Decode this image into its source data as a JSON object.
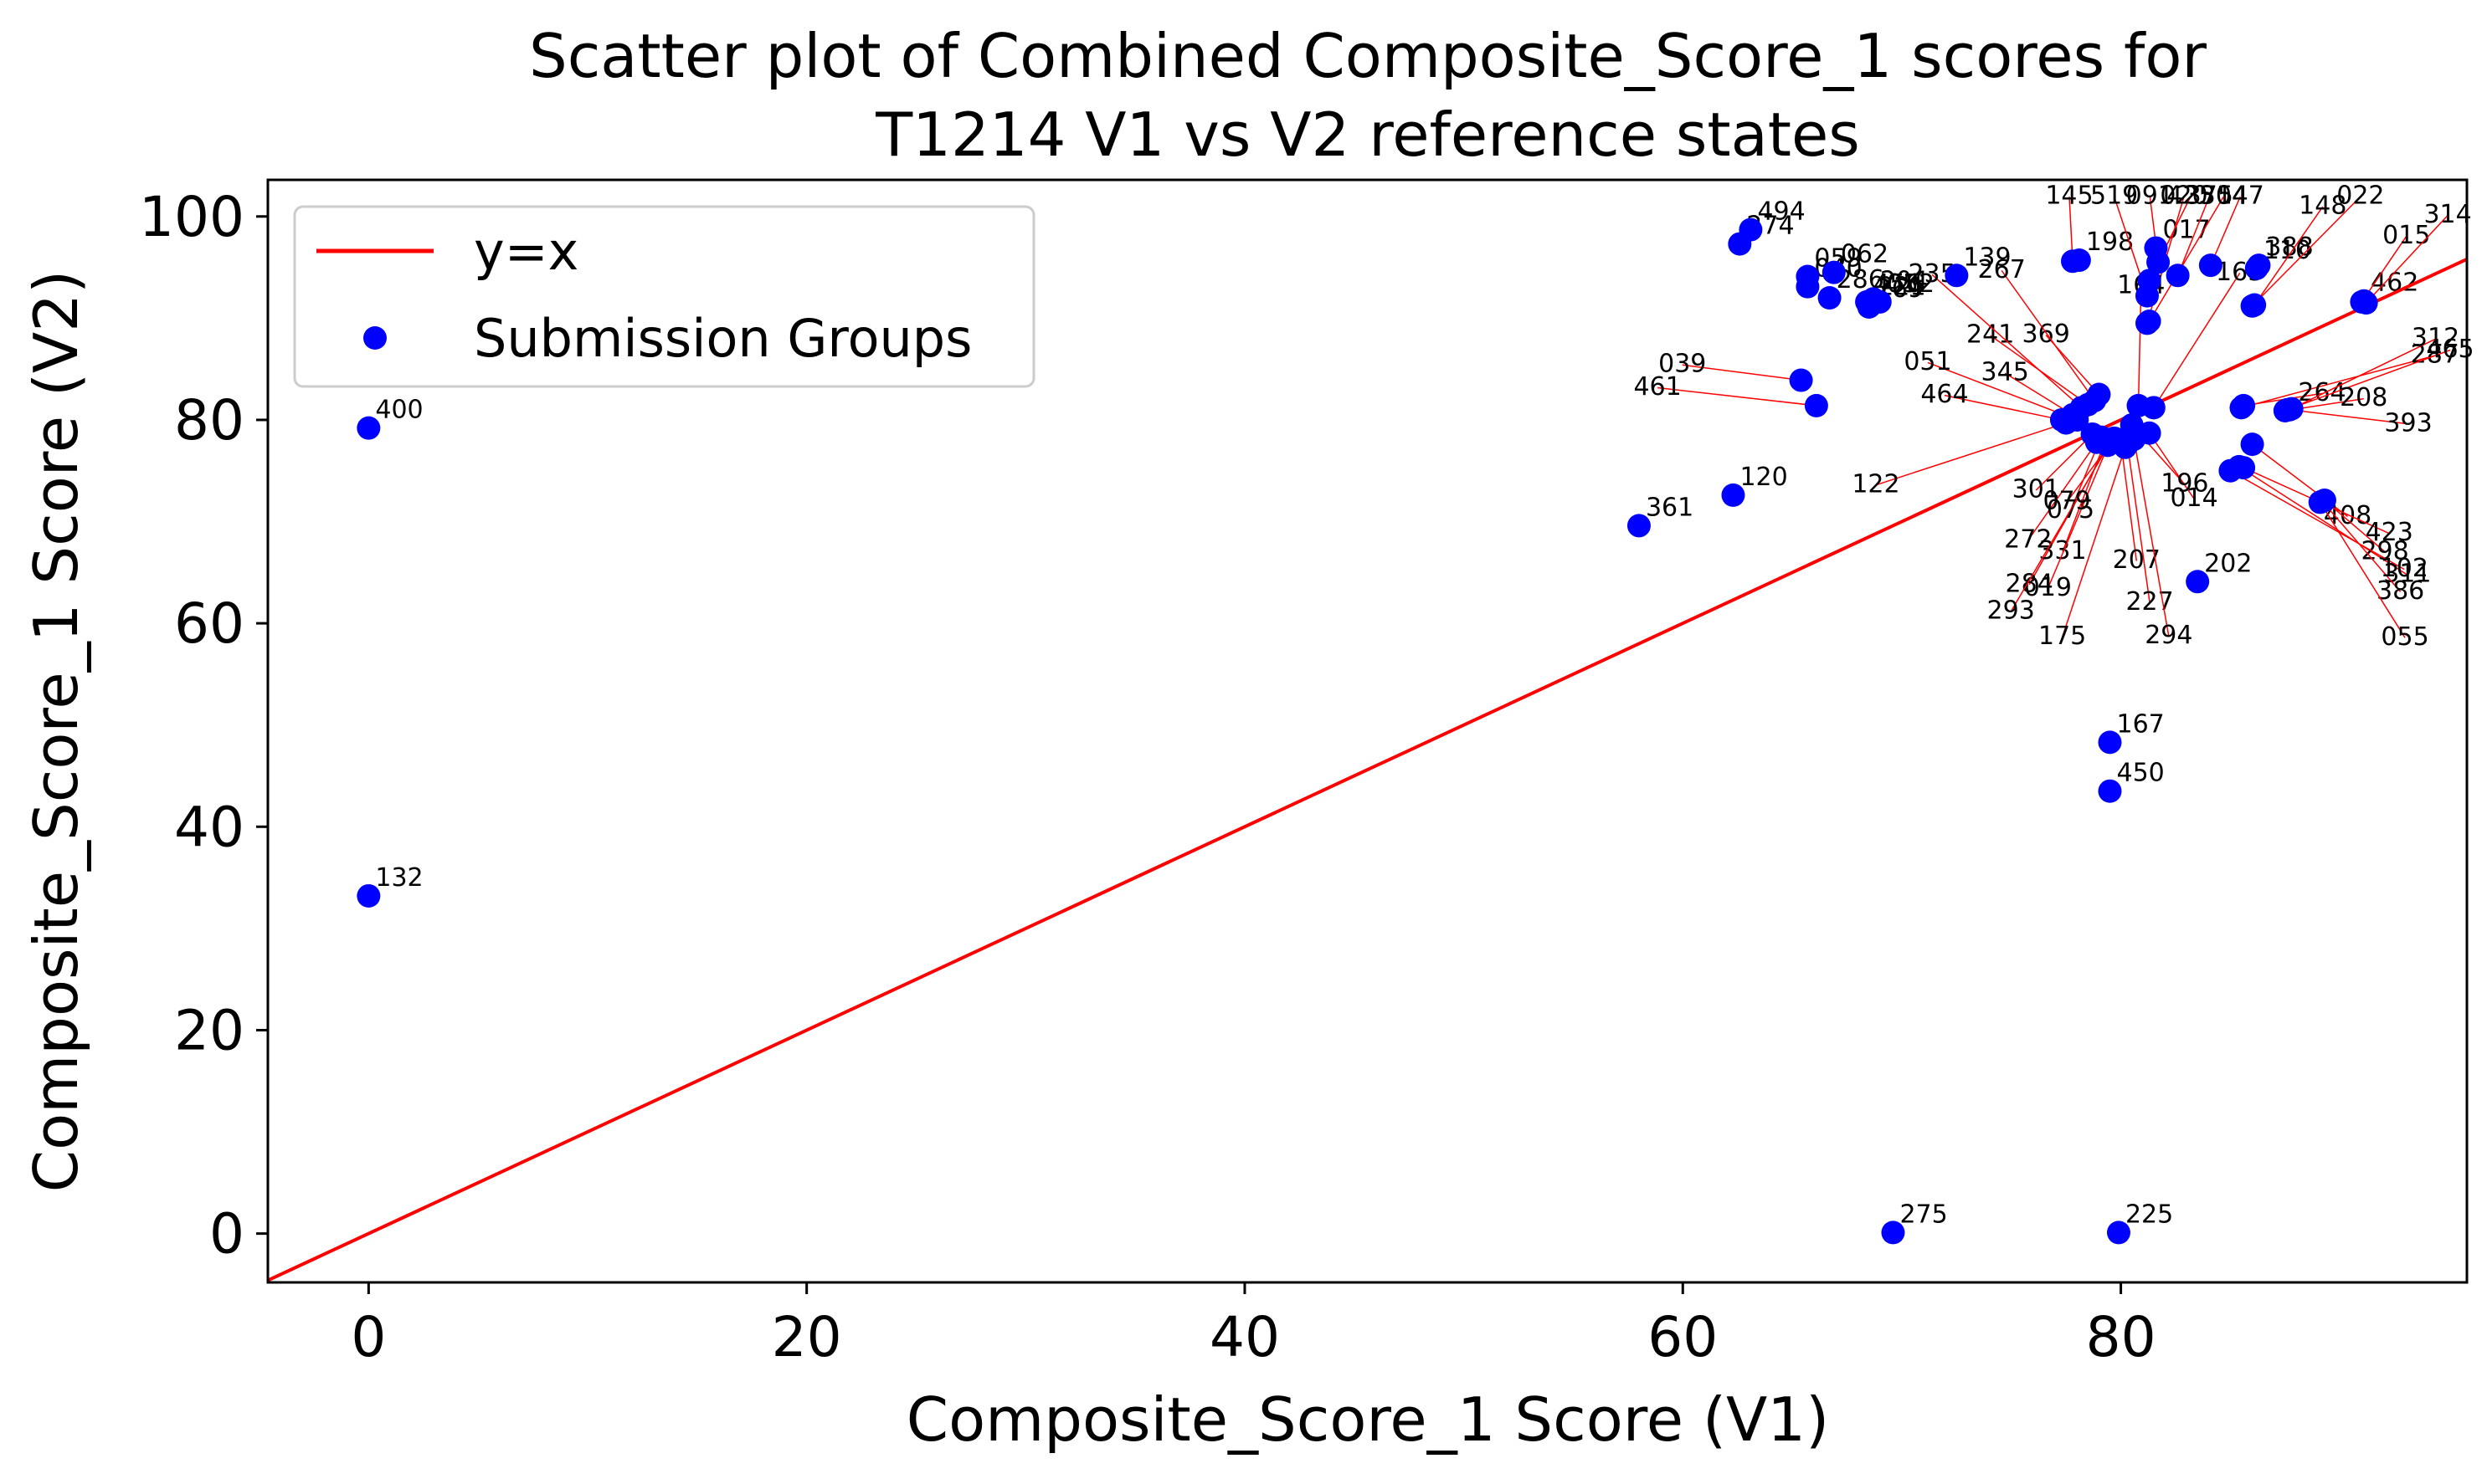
{
  "chart_data": {
    "type": "scatter",
    "title": [
      "Scatter plot of Combined Composite_Score_1 scores for",
      "T1214 V1 vs V2 reference states"
    ],
    "xlabel": "Composite_Score_1 Score (V1)",
    "ylabel": "Composite_Score_1 Score (V2)",
    "xlim": [
      -4.6,
      95.8
    ],
    "ylim": [
      -4.8,
      103.6
    ],
    "xticks": [
      0,
      20,
      40,
      60,
      80
    ],
    "yticks": [
      0,
      20,
      40,
      60,
      80,
      100
    ],
    "grid": false,
    "legend_position": "top-left",
    "reference_line": {
      "name": "y=x",
      "color": "#ff0000"
    },
    "series": [
      {
        "name": "Submission Groups",
        "color": "#0000ff",
        "points": [
          {
            "x": 0,
            "y": 79.2,
            "label": "400"
          },
          {
            "x": 0,
            "y": 33.2,
            "label": "132"
          },
          {
            "x": 58.0,
            "y": 69.6,
            "label": "361"
          },
          {
            "x": 62.3,
            "y": 72.6,
            "label": "120"
          },
          {
            "x": 69.6,
            "y": 0.1,
            "label": "275"
          },
          {
            "x": 79.9,
            "y": 0.1,
            "label": "225"
          },
          {
            "x": 79.5,
            "y": 48.3,
            "label": "167"
          },
          {
            "x": 79.5,
            "y": 43.5,
            "label": "450"
          },
          {
            "x": 83.5,
            "y": 64.1,
            "label": "202"
          },
          {
            "x": 62.6,
            "y": 97.3,
            "label": "274"
          },
          {
            "x": 63.1,
            "y": 98.7,
            "label": "494"
          },
          {
            "x": 65.7,
            "y": 93.1,
            "label": "040"
          },
          {
            "x": 65.7,
            "y": 94.1,
            "label": "059"
          },
          {
            "x": 66.7,
            "y": 92.0,
            "label": "286"
          },
          {
            "x": 66.9,
            "y": 94.5,
            "label": "062"
          },
          {
            "x": 68.4,
            "y": 91.6,
            "label": "456"
          },
          {
            "x": 68.7,
            "y": 91.9,
            "label": "204"
          },
          {
            "x": 69.0,
            "y": 91.6,
            "label": "052"
          },
          {
            "x": 68.5,
            "y": 91.1,
            "label": "269"
          },
          {
            "x": 68.6,
            "y": 91.3,
            "label": "221"
          },
          {
            "x": 72.5,
            "y": 94.2,
            "label": "139"
          },
          {
            "x": 65.4,
            "y": 83.9,
            "label": "039"
          },
          {
            "x": 66.1,
            "y": 81.4,
            "label": "461"
          },
          {
            "x": 77.8,
            "y": 95.6,
            "label": "145"
          },
          {
            "x": 78.1,
            "y": 95.7,
            "label": "198"
          },
          {
            "x": 81.6,
            "y": 96.9,
            "label": "017"
          },
          {
            "x": 81.7,
            "y": 95.5,
            "label": "091"
          },
          {
            "x": 82.6,
            "y": 94.2,
            "label": "375"
          },
          {
            "x": 84.1,
            "y": 95.2,
            "label": "147"
          },
          {
            "x": 81.3,
            "y": 93.7,
            "label": "425"
          },
          {
            "x": 81.2,
            "y": 92.2,
            "label": "519"
          },
          {
            "x": 86.3,
            "y": 95.2,
            "label": "388"
          },
          {
            "x": 86.2,
            "y": 94.9,
            "label": "110"
          },
          {
            "x": 86.1,
            "y": 91.3,
            "label": "148"
          },
          {
            "x": 86.0,
            "y": 91.2,
            "label": "022"
          },
          {
            "x": 91.1,
            "y": 91.7,
            "label": "462"
          },
          {
            "x": 91.0,
            "y": 91.6,
            "label": "015"
          },
          {
            "x": 91.2,
            "y": 91.5,
            "label": "314"
          },
          {
            "x": 81.2,
            "y": 89.5,
            "label": "020"
          },
          {
            "x": 81.3,
            "y": 89.7,
            "label": "304"
          },
          {
            "x": 79.0,
            "y": 82.5,
            "label": "369"
          },
          {
            "x": 78.5,
            "y": 81.5,
            "label": "241"
          },
          {
            "x": 78.8,
            "y": 81.9,
            "label": "267"
          },
          {
            "x": 78.2,
            "y": 81.2,
            "label": "235"
          },
          {
            "x": 77.8,
            "y": 80.5,
            "label": "345"
          },
          {
            "x": 80.8,
            "y": 81.4,
            "label": "164"
          },
          {
            "x": 81.5,
            "y": 81.2,
            "label": "163"
          },
          {
            "x": 85.5,
            "y": 81.2,
            "label": "287"
          },
          {
            "x": 85.6,
            "y": 81.4,
            "label": "264"
          },
          {
            "x": 87.7,
            "y": 81.0,
            "label": "393"
          },
          {
            "x": 87.8,
            "y": 81.1,
            "label": "312"
          },
          {
            "x": 87.6,
            "y": 81.0,
            "label": "465"
          },
          {
            "x": 87.5,
            "y": 80.9,
            "label": "208"
          },
          {
            "x": 77.3,
            "y": 80.0,
            "label": "464"
          },
          {
            "x": 78.0,
            "y": 80.0,
            "label": "051"
          },
          {
            "x": 77.5,
            "y": 79.7,
            "label": "122"
          },
          {
            "x": 78.7,
            "y": 78.6,
            "label": "301"
          },
          {
            "x": 78.9,
            "y": 77.8,
            "label": "272"
          },
          {
            "x": 79.4,
            "y": 77.5,
            "label": "284"
          },
          {
            "x": 80.2,
            "y": 77.3,
            "label": "175"
          },
          {
            "x": 79.1,
            "y": 78.3,
            "label": "075"
          },
          {
            "x": 79.3,
            "y": 78.0,
            "label": "331"
          },
          {
            "x": 79.5,
            "y": 77.9,
            "label": "019"
          },
          {
            "x": 79.6,
            "y": 78.1,
            "label": "293"
          },
          {
            "x": 79.7,
            "y": 78.2,
            "label": "079"
          },
          {
            "x": 80.0,
            "y": 77.8,
            "label": "207"
          },
          {
            "x": 80.3,
            "y": 77.6,
            "label": "227"
          },
          {
            "x": 80.6,
            "y": 78.1,
            "label": "294"
          },
          {
            "x": 81.3,
            "y": 78.7,
            "label": "014"
          },
          {
            "x": 86.0,
            "y": 77.6,
            "label": "408"
          },
          {
            "x": 85.6,
            "y": 75.3,
            "label": "423"
          },
          {
            "x": 85.4,
            "y": 75.4,
            "label": "311"
          },
          {
            "x": 89.3,
            "y": 72.1,
            "label": "298"
          },
          {
            "x": 89.2,
            "y": 72.0,
            "label": "386"
          },
          {
            "x": 89.1,
            "y": 71.9,
            "label": "055"
          },
          {
            "x": 85.0,
            "y": 75.0,
            "label": "102"
          },
          {
            "x": 80.5,
            "y": 79.5,
            "label": "196"
          }
        ]
      }
    ]
  }
}
